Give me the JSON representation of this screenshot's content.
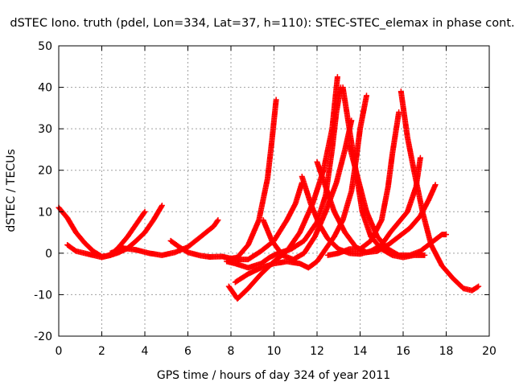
{
  "chart_data": {
    "type": "scatter",
    "title": "dSTEC Iono. truth (pdel, Lon=334, Lat=37, h=110): STEC-STEC_elemax in phase cont.",
    "xlabel": "GPS time / hours of day 324 of year 2011",
    "ylabel": "dSTEC  / TECUs",
    "xlim": [
      0,
      20
    ],
    "ylim": [
      -20,
      50
    ],
    "xticks": [
      0,
      2,
      4,
      6,
      8,
      10,
      12,
      14,
      16,
      18,
      20
    ],
    "yticks": [
      -20,
      -10,
      0,
      10,
      20,
      30,
      40,
      50
    ],
    "xtick_labels": [
      "0",
      "2",
      "4",
      "6",
      "8",
      "10",
      "12",
      "14",
      "16",
      "18",
      "20"
    ],
    "ytick_labels": [
      "-20",
      "-10",
      "0",
      "10",
      "20",
      "30",
      "40",
      "50"
    ],
    "grid": true,
    "marker": "+",
    "colors": {
      "series": "#ff0000",
      "grid": "#a0a0a0",
      "axes": "#000000"
    },
    "series": [
      {
        "points": [
          [
            0,
            11
          ],
          [
            0.4,
            8.5
          ],
          [
            0.8,
            5
          ],
          [
            1.2,
            2.5
          ],
          [
            1.6,
            0.5
          ],
          [
            2.0,
            -0.8
          ],
          [
            2.4,
            -0.5
          ],
          [
            2.8,
            1.5
          ],
          [
            3.2,
            4
          ],
          [
            3.6,
            7
          ],
          [
            4.0,
            10
          ]
        ]
      },
      {
        "points": [
          [
            0.4,
            2
          ],
          [
            0.8,
            0.5
          ],
          [
            1.2,
            0
          ],
          [
            1.6,
            -0.5
          ],
          [
            2.0,
            -1.0
          ],
          [
            2.4,
            -0.5
          ],
          [
            2.8,
            0.2
          ],
          [
            3.2,
            1.2
          ],
          [
            3.6,
            3
          ],
          [
            4.0,
            5
          ],
          [
            4.4,
            8
          ],
          [
            4.8,
            11.5
          ]
        ]
      },
      {
        "points": [
          [
            2.4,
            0
          ],
          [
            3.0,
            1.2
          ],
          [
            3.6,
            0.8
          ],
          [
            4.2,
            0
          ],
          [
            4.8,
            -0.5
          ],
          [
            5.4,
            0.2
          ],
          [
            6.0,
            1.5
          ],
          [
            6.6,
            4
          ],
          [
            7.2,
            6.5
          ],
          [
            7.4,
            8
          ]
        ]
      },
      {
        "points": [
          [
            5.2,
            3
          ],
          [
            5.6,
            1.5
          ],
          [
            6.0,
            0.2
          ],
          [
            6.6,
            -0.6
          ],
          [
            7.0,
            -0.9
          ],
          [
            7.6,
            -0.8
          ],
          [
            8.2,
            -1.5
          ],
          [
            8.8,
            -1.5
          ],
          [
            9.4,
            0.5
          ],
          [
            10.0,
            3
          ],
          [
            10.6,
            8
          ],
          [
            11.0,
            12
          ],
          [
            11.3,
            17
          ]
        ]
      },
      {
        "points": [
          [
            7.8,
            -2
          ],
          [
            8.2,
            -2.5
          ],
          [
            8.8,
            -3.5
          ],
          [
            9.4,
            -2.5
          ],
          [
            9.8,
            -1
          ],
          [
            10.2,
            0
          ],
          [
            10.8,
            1
          ],
          [
            11.4,
            3
          ],
          [
            12.0,
            7.5
          ],
          [
            12.4,
            14
          ],
          [
            12.7,
            25
          ],
          [
            12.9,
            34
          ],
          [
            13.1,
            40
          ]
        ]
      },
      {
        "points": [
          [
            7.9,
            -8
          ],
          [
            8.3,
            -11
          ],
          [
            8.8,
            -8.5
          ],
          [
            9.4,
            -5
          ],
          [
            10.0,
            -2
          ],
          [
            10.6,
            0.5
          ],
          [
            11.2,
            5
          ],
          [
            11.8,
            12
          ],
          [
            12.3,
            20
          ],
          [
            12.7,
            30
          ],
          [
            12.95,
            42.5
          ]
        ]
      },
      {
        "points": [
          [
            7.8,
            -1.5
          ],
          [
            8.3,
            -1
          ],
          [
            8.8,
            2
          ],
          [
            9.3,
            8
          ],
          [
            9.7,
            18
          ],
          [
            9.9,
            27
          ],
          [
            10.1,
            37
          ]
        ]
      },
      {
        "points": [
          [
            8.2,
            -7
          ],
          [
            8.8,
            -5
          ],
          [
            9.4,
            -3.5
          ],
          [
            10.0,
            -2.5
          ],
          [
            10.6,
            -2
          ],
          [
            11.2,
            -2.5
          ],
          [
            11.6,
            -3.5
          ],
          [
            12.0,
            -2
          ],
          [
            12.4,
            1
          ],
          [
            12.8,
            4
          ],
          [
            13.2,
            8
          ],
          [
            13.6,
            15
          ],
          [
            13.8,
            22
          ],
          [
            14.0,
            30
          ],
          [
            14.3,
            38
          ]
        ]
      },
      {
        "points": [
          [
            9.5,
            8
          ],
          [
            9.9,
            3
          ],
          [
            10.4,
            -0.5
          ],
          [
            10.9,
            -1.5
          ],
          [
            11.4,
            0
          ],
          [
            11.9,
            4
          ],
          [
            12.4,
            10
          ],
          [
            12.9,
            17
          ],
          [
            13.3,
            25
          ],
          [
            13.6,
            32
          ]
        ]
      },
      {
        "points": [
          [
            11.3,
            18.5
          ],
          [
            11.7,
            12
          ],
          [
            12.1,
            7
          ],
          [
            12.5,
            3.5
          ],
          [
            13.0,
            1
          ],
          [
            13.5,
            0
          ],
          [
            14.0,
            -0.2
          ],
          [
            14.5,
            0.5
          ],
          [
            15.0,
            2
          ],
          [
            15.4,
            5
          ],
          [
            15.8,
            7.5
          ],
          [
            16.2,
            10
          ],
          [
            16.6,
            16
          ],
          [
            16.8,
            23
          ]
        ]
      },
      {
        "points": [
          [
            12.0,
            22
          ],
          [
            12.4,
            16
          ],
          [
            12.8,
            10
          ],
          [
            13.3,
            5
          ],
          [
            13.8,
            1.5
          ],
          [
            14.3,
            0.2
          ],
          [
            14.8,
            0.5
          ],
          [
            15.3,
            2
          ],
          [
            15.8,
            4
          ],
          [
            16.3,
            6
          ],
          [
            16.8,
            9
          ],
          [
            17.2,
            13
          ],
          [
            17.5,
            16.5
          ]
        ]
      },
      {
        "points": [
          [
            13.5,
            26
          ],
          [
            13.9,
            18
          ],
          [
            14.3,
            10
          ],
          [
            14.8,
            4
          ],
          [
            15.3,
            1
          ],
          [
            15.8,
            -0.5
          ],
          [
            16.3,
            -0.5
          ],
          [
            16.8,
            0.5
          ],
          [
            17.3,
            2.5
          ],
          [
            17.8,
            4.5
          ],
          [
            18.0,
            4.5
          ]
        ]
      },
      {
        "points": [
          [
            13.2,
            40
          ],
          [
            13.5,
            30
          ],
          [
            13.8,
            20
          ],
          [
            14.1,
            10
          ],
          [
            14.5,
            4
          ],
          [
            15.0,
            1
          ],
          [
            15.5,
            -0.5
          ],
          [
            16.0,
            -1
          ],
          [
            16.5,
            -0.5
          ],
          [
            17.0,
            -0.5
          ]
        ]
      },
      {
        "points": [
          [
            12.5,
            -0.5
          ],
          [
            13.0,
            0
          ],
          [
            13.5,
            1
          ],
          [
            14.0,
            1
          ],
          [
            14.5,
            3
          ],
          [
            15.0,
            8
          ],
          [
            15.3,
            16
          ],
          [
            15.5,
            24
          ],
          [
            15.8,
            34
          ]
        ]
      },
      {
        "points": [
          [
            15.9,
            39
          ],
          [
            16.2,
            28
          ],
          [
            16.5,
            20
          ],
          [
            16.9,
            10
          ],
          [
            17.3,
            2
          ],
          [
            17.8,
            -3
          ],
          [
            18.3,
            -6
          ],
          [
            18.8,
            -8.5
          ],
          [
            19.2,
            -9
          ],
          [
            19.5,
            -8
          ]
        ]
      }
    ]
  }
}
